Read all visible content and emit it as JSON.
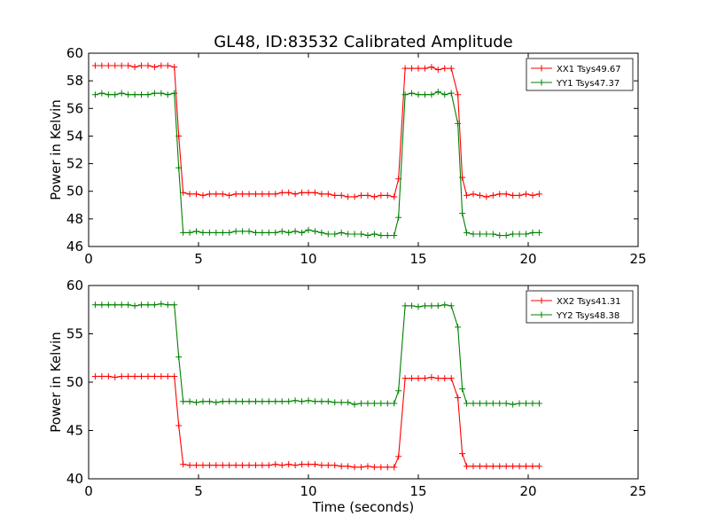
{
  "figure": {
    "title": "GL48, ID:83532 Calibrated Amplitude",
    "xlabel": "Time (seconds)"
  },
  "chart_data": [
    {
      "type": "line",
      "title": "GL48, ID:83532 Calibrated Amplitude",
      "xlabel": "",
      "ylabel": "Power in Kelvin",
      "xlim": [
        0,
        25
      ],
      "ylim": [
        46,
        60
      ],
      "xticks": [
        0,
        5,
        10,
        15,
        20,
        25
      ],
      "yticks": [
        46,
        48,
        50,
        52,
        54,
        56,
        58,
        60
      ],
      "grid": false,
      "legend_position": "top-right",
      "x": [
        0.3,
        0.6,
        0.9,
        1.2,
        1.5,
        1.8,
        2.1,
        2.4,
        2.7,
        3.0,
        3.3,
        3.6,
        3.9,
        4.1,
        4.3,
        4.6,
        4.9,
        5.2,
        5.5,
        5.8,
        6.1,
        6.4,
        6.7,
        7.0,
        7.3,
        7.6,
        7.9,
        8.2,
        8.5,
        8.8,
        9.1,
        9.4,
        9.7,
        10.0,
        10.3,
        10.6,
        10.9,
        11.2,
        11.5,
        11.8,
        12.1,
        12.4,
        12.7,
        13.0,
        13.3,
        13.6,
        13.9,
        14.1,
        14.4,
        14.7,
        15.0,
        15.3,
        15.6,
        15.9,
        16.2,
        16.5,
        16.8,
        17.0,
        17.2,
        17.5,
        17.8,
        18.1,
        18.4,
        18.7,
        19.0,
        19.3,
        19.6,
        19.9,
        20.2,
        20.5
      ],
      "series": [
        {
          "name": "XX1 Tsys49.67",
          "color": "#ff0000",
          "values": [
            59.1,
            59.1,
            59.1,
            59.1,
            59.1,
            59.1,
            59.0,
            59.1,
            59.1,
            59.0,
            59.1,
            59.1,
            59.0,
            54.0,
            49.9,
            49.8,
            49.8,
            49.7,
            49.8,
            49.8,
            49.8,
            49.7,
            49.8,
            49.8,
            49.8,
            49.8,
            49.8,
            49.8,
            49.8,
            49.9,
            49.9,
            49.8,
            49.9,
            49.9,
            49.9,
            49.8,
            49.8,
            49.7,
            49.7,
            49.6,
            49.6,
            49.7,
            49.7,
            49.6,
            49.7,
            49.7,
            49.6,
            50.9,
            58.9,
            58.9,
            58.9,
            58.9,
            59.0,
            58.8,
            58.9,
            58.9,
            57.0,
            51.0,
            49.7,
            49.8,
            49.7,
            49.6,
            49.7,
            49.8,
            49.8,
            49.7,
            49.7,
            49.8,
            49.7,
            49.8
          ]
        },
        {
          "name": "YY1 Tsys47.37",
          "color": "#008000",
          "values": [
            57.0,
            57.1,
            57.0,
            57.0,
            57.1,
            57.0,
            57.0,
            57.0,
            57.0,
            57.1,
            57.1,
            57.0,
            57.1,
            51.7,
            47.0,
            47.0,
            47.1,
            47.0,
            47.0,
            47.0,
            47.0,
            47.0,
            47.1,
            47.1,
            47.1,
            47.0,
            47.0,
            47.0,
            47.0,
            47.1,
            47.0,
            47.1,
            47.0,
            47.2,
            47.1,
            47.0,
            46.9,
            46.9,
            47.0,
            46.9,
            46.9,
            46.9,
            46.8,
            46.9,
            46.8,
            46.8,
            46.8,
            48.1,
            57.0,
            57.1,
            57.0,
            57.0,
            57.0,
            57.2,
            57.0,
            57.1,
            54.9,
            48.4,
            47.0,
            46.9,
            46.9,
            46.9,
            46.9,
            46.8,
            46.8,
            46.9,
            46.9,
            46.9,
            47.0,
            47.0
          ]
        }
      ]
    },
    {
      "type": "line",
      "title": "",
      "xlabel": "Time (seconds)",
      "ylabel": "Power in Kelvin",
      "xlim": [
        0,
        25
      ],
      "ylim": [
        40,
        60
      ],
      "xticks": [
        0,
        5,
        10,
        15,
        20,
        25
      ],
      "yticks": [
        40,
        45,
        50,
        55,
        60
      ],
      "grid": false,
      "legend_position": "top-right",
      "x": [
        0.3,
        0.6,
        0.9,
        1.2,
        1.5,
        1.8,
        2.1,
        2.4,
        2.7,
        3.0,
        3.3,
        3.6,
        3.9,
        4.1,
        4.3,
        4.6,
        4.9,
        5.2,
        5.5,
        5.8,
        6.1,
        6.4,
        6.7,
        7.0,
        7.3,
        7.6,
        7.9,
        8.2,
        8.5,
        8.8,
        9.1,
        9.4,
        9.7,
        10.0,
        10.3,
        10.6,
        10.9,
        11.2,
        11.5,
        11.8,
        12.1,
        12.4,
        12.7,
        13.0,
        13.3,
        13.6,
        13.9,
        14.1,
        14.4,
        14.7,
        15.0,
        15.3,
        15.6,
        15.9,
        16.2,
        16.5,
        16.8,
        17.0,
        17.2,
        17.5,
        17.8,
        18.1,
        18.4,
        18.7,
        19.0,
        19.3,
        19.6,
        19.9,
        20.2,
        20.5
      ],
      "series": [
        {
          "name": "XX2 Tsys41.31",
          "color": "#ff0000",
          "values": [
            50.6,
            50.6,
            50.6,
            50.5,
            50.6,
            50.6,
            50.6,
            50.6,
            50.6,
            50.6,
            50.6,
            50.6,
            50.6,
            45.5,
            41.5,
            41.4,
            41.4,
            41.4,
            41.4,
            41.4,
            41.4,
            41.4,
            41.4,
            41.4,
            41.4,
            41.4,
            41.4,
            41.4,
            41.5,
            41.4,
            41.5,
            41.4,
            41.5,
            41.5,
            41.5,
            41.4,
            41.4,
            41.4,
            41.3,
            41.3,
            41.2,
            41.2,
            41.3,
            41.2,
            41.2,
            41.2,
            41.2,
            42.3,
            50.4,
            50.4,
            50.4,
            50.4,
            50.5,
            50.4,
            50.4,
            50.4,
            48.4,
            42.6,
            41.3,
            41.3,
            41.3,
            41.3,
            41.3,
            41.3,
            41.3,
            41.3,
            41.3,
            41.3,
            41.3,
            41.3
          ]
        },
        {
          "name": "YY2 Tsys48.38",
          "color": "#008000",
          "values": [
            58.0,
            58.0,
            58.0,
            58.0,
            58.0,
            58.0,
            57.9,
            58.0,
            58.0,
            58.0,
            58.1,
            58.0,
            58.0,
            52.6,
            48.0,
            48.0,
            47.9,
            48.0,
            48.0,
            47.9,
            48.0,
            48.0,
            48.0,
            48.0,
            48.0,
            48.0,
            48.0,
            48.0,
            48.0,
            48.0,
            48.0,
            48.1,
            48.0,
            48.1,
            48.0,
            48.0,
            48.0,
            47.9,
            47.9,
            47.9,
            47.7,
            47.8,
            47.8,
            47.8,
            47.8,
            47.8,
            47.8,
            49.1,
            57.9,
            57.9,
            57.8,
            57.9,
            57.9,
            57.9,
            58.0,
            57.9,
            55.7,
            49.3,
            47.8,
            47.8,
            47.8,
            47.8,
            47.8,
            47.8,
            47.8,
            47.7,
            47.8,
            47.8,
            47.8,
            47.8
          ]
        }
      ]
    }
  ]
}
